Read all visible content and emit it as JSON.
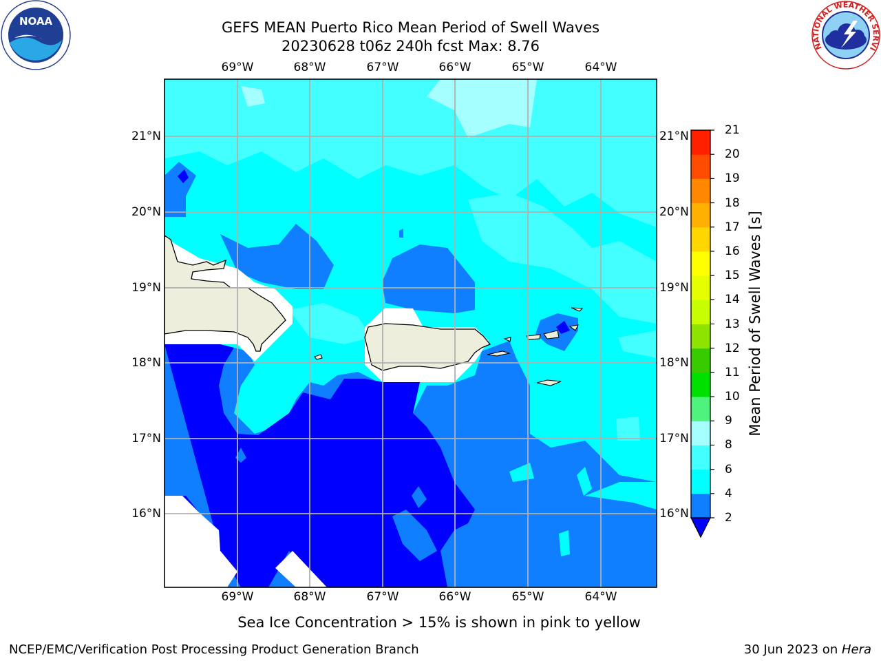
{
  "title_line1": "GEFS MEAN Puerto Rico Mean Period of Swell Waves",
  "title_line2": "20230628 t06z 240h fcst   Max: 8.76",
  "map": {
    "lon_ticks": [
      "69°W",
      "68°W",
      "67°W",
      "66°W",
      "65°W",
      "64°W"
    ],
    "lat_ticks": [
      "21°N",
      "20°N",
      "19°N",
      "18°N",
      "17°N",
      "16°N"
    ]
  },
  "colorbar": {
    "label": "Mean Period of Swell Waves [s]",
    "ticks": [
      "2",
      "4",
      "6",
      "8",
      "9",
      "10",
      "11",
      "12",
      "13",
      "14",
      "15",
      "16",
      "17",
      "18",
      "19",
      "20",
      "21"
    ],
    "colors": [
      "#0000ff",
      "#0f7fff",
      "#00ffff",
      "#44ffff",
      "#a6ffff",
      "#4ef27c",
      "#00e000",
      "#38cc00",
      "#8ee400",
      "#c8ff00",
      "#e5ff00",
      "#ffff00",
      "#ffd700",
      "#ffb000",
      "#ff8800",
      "#ff4c00",
      "#ff2000",
      "#ff0000"
    ]
  },
  "subtitle": "Sea Ice Concentration > 15% is shown in pink to yellow",
  "footer": {
    "left": "NCEP/EMC/Verification Post Processing Product Generation Branch",
    "right_prefix": "30 Jun 2023 on ",
    "right_machine": "Hera"
  },
  "logos": {
    "noaa": "NOAA",
    "nws": "NATIONAL WEATHER SERVICE"
  }
}
